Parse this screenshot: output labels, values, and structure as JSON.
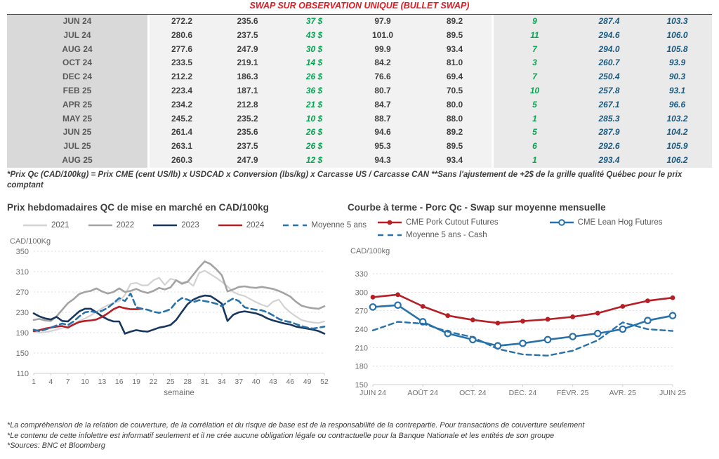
{
  "banner_title": "SWAP SUR OBSERVATION UNIQUE (BULLET SWAP)",
  "colors": {
    "banner_red": "#e01b22",
    "green_value": "#00a650",
    "blue_value": "#19597e",
    "month_col_bg": "#d9d9d9",
    "table_bg": "#f2f2f2",
    "series_2021": "#d2d2d2",
    "series_2022": "#a3a3a3",
    "series_2023": "#17375e",
    "series_2024": "#b42025",
    "series_blue": "#2871a9"
  },
  "table": {
    "rows": [
      [
        "JUN 24",
        "272.2",
        "235.6",
        "37 $",
        "97.9",
        "89.2",
        "9",
        "287.4",
        "103.3"
      ],
      [
        "JUL 24",
        "280.6",
        "237.5",
        "43 $",
        "101.0",
        "89.5",
        "11",
        "294.6",
        "106.0"
      ],
      [
        "AUG 24",
        "277.6",
        "247.9",
        "30 $",
        "99.9",
        "93.4",
        "7",
        "294.0",
        "105.8"
      ],
      [
        "OCT 24",
        "233.5",
        "219.1",
        "14 $",
        "84.2",
        "81.0",
        "3",
        "260.7",
        "93.9"
      ],
      [
        "DEC 24",
        "212.2",
        "186.3",
        "26 $",
        "76.6",
        "69.4",
        "7",
        "250.4",
        "90.3"
      ],
      [
        "FEB 25",
        "223.4",
        "187.1",
        "36 $",
        "80.7",
        "70.5",
        "10",
        "257.8",
        "93.1"
      ],
      [
        "APR 25",
        "234.2",
        "212.8",
        "21 $",
        "84.7",
        "80.0",
        "5",
        "267.1",
        "96.6"
      ],
      [
        "MAY 25",
        "245.2",
        "235.2",
        "10 $",
        "88.7",
        "88.0",
        "1",
        "285.3",
        "103.2"
      ],
      [
        "JUN 25",
        "261.4",
        "235.6",
        "26 $",
        "94.6",
        "89.2",
        "5",
        "287.9",
        "104.2"
      ],
      [
        "JUL 25",
        "263.1",
        "237.5",
        "26 $",
        "95.3",
        "89.5",
        "6",
        "292.6",
        "105.9"
      ],
      [
        "AUG 25",
        "260.3",
        "247.9",
        "12 $",
        "94.3",
        "93.4",
        "1",
        "293.4",
        "106.2"
      ]
    ],
    "footnote": "*Prix Qc (CAD/100kg) = Prix CME (cent US/lb) x USDCAD x Conversion (lbs/kg) x Carcasse US / Carcasse CAN **Sans l'ajustement de +2$ de la grille qualité Québec pour le prix comptant"
  },
  "chart_data": [
    {
      "type": "line",
      "title": "Prix hebdomadaires QC de mise en marché en CAD/100kg",
      "y_axis_label": "CAD/100Kg",
      "xlabel": "semaine",
      "ylim": [
        110,
        350
      ],
      "ytick_step": 40,
      "x_start": 1,
      "x_end": 52,
      "xticks": [
        1,
        4,
        7,
        10,
        13,
        16,
        19,
        22,
        25,
        28,
        31,
        34,
        37,
        40,
        43,
        46,
        49,
        52
      ],
      "grid": "horizontal-dashed",
      "legend_position": "top",
      "series": [
        {
          "name": "2021",
          "color": "#d2d2d2",
          "width": 2.2,
          "values": [
            192,
            190,
            191,
            193,
            196,
            199,
            203,
            207,
            213,
            218,
            224,
            231,
            238,
            244,
            248,
            252,
            264,
            286,
            288,
            283,
            283,
            293,
            298,
            284,
            296,
            293,
            288,
            291,
            282,
            307,
            312,
            305,
            298,
            290,
            281,
            270,
            265,
            262,
            256,
            250,
            245,
            241,
            251,
            255,
            240,
            230,
            222,
            215,
            212,
            210,
            209,
            212
          ]
        },
        {
          "name": "2022",
          "color": "#a3a3a3",
          "width": 2.6,
          "values": [
            215,
            217,
            214,
            213,
            222,
            235,
            248,
            256,
            266,
            270,
            272,
            277,
            271,
            267,
            270,
            277,
            270,
            272,
            276,
            271,
            268,
            272,
            278,
            275,
            279,
            293,
            286,
            290,
            304,
            318,
            330,
            325,
            315,
            303,
            271,
            275,
            280,
            281,
            279,
            278,
            280,
            278,
            276,
            272,
            267,
            261,
            251,
            243,
            240,
            238,
            237,
            242
          ]
        },
        {
          "name": "2023",
          "color": "#17375e",
          "width": 2.6,
          "values": [
            228,
            222,
            218,
            216,
            221,
            213,
            212,
            222,
            232,
            237,
            237,
            230,
            222,
            216,
            212,
            212,
            188,
            192,
            195,
            193,
            192,
            196,
            200,
            202,
            205,
            215,
            231,
            246,
            255,
            260,
            263,
            262,
            255,
            247,
            213,
            225,
            230,
            232,
            230,
            228,
            224,
            218,
            214,
            211,
            208,
            206,
            202,
            200,
            198,
            196,
            193,
            188
          ]
        },
        {
          "name": "2024",
          "color": "#b42025",
          "width": 2.6,
          "values": [
            193,
            195,
            198,
            200,
            202,
            203,
            200,
            206,
            211,
            213,
            214,
            216,
            221,
            228,
            236,
            241,
            238,
            236,
            236,
            237
          ]
        },
        {
          "name": "Moyenne 5 ans",
          "color": "#2871a9",
          "width": 2.6,
          "dash": "8 5",
          "values": [
            196,
            193,
            196,
            200,
            204,
            208,
            205,
            212,
            222,
            230,
            232,
            230,
            233,
            239,
            248,
            258,
            252,
            267,
            240,
            237,
            235,
            231,
            229,
            232,
            236,
            250,
            258,
            255,
            250,
            254,
            252,
            250,
            247,
            242,
            251,
            257,
            252,
            240,
            237,
            235,
            234,
            230,
            224,
            217,
            213,
            211,
            207,
            203,
            200,
            198,
            200,
            202
          ]
        }
      ]
    },
    {
      "type": "line",
      "title": "Courbe à terme - Porc Qc - Swap sur moyenne mensuelle",
      "y_axis_label": "CAD/100kg",
      "ylim": [
        150,
        330
      ],
      "ytick_step": 30,
      "n_points": 13,
      "xtick_labels": [
        "JUIN 24",
        "AOÛT 24",
        "OCT. 24",
        "DÉC. 24",
        "FÉVR. 25",
        "AVR. 25",
        "JUIN 25"
      ],
      "xtick_indices": [
        0,
        2,
        4,
        6,
        8,
        10,
        12
      ],
      "grid": "horizontal-dashed",
      "legend_position": "top",
      "series": [
        {
          "name": "CME Pork Cutout Futures",
          "color": "#b42025",
          "width": 2.6,
          "marker": "filled",
          "values": [
            292,
            296,
            277,
            262,
            255,
            250,
            253,
            256,
            260,
            266,
            277,
            286,
            291
          ]
        },
        {
          "name": "CME Lean Hog Futures",
          "color": "#2871a9",
          "width": 2.6,
          "marker": "open",
          "values": [
            276,
            279,
            252,
            233,
            223,
            213,
            217,
            223,
            228,
            233,
            240,
            254,
            262
          ]
        },
        {
          "name": "Moyenne 5 ans - Cash",
          "color": "#2871a9",
          "width": 2.4,
          "dash": "7 5",
          "values": [
            238,
            252,
            249,
            236,
            227,
            208,
            199,
            197,
            205,
            222,
            251,
            240,
            237
          ]
        }
      ]
    }
  ],
  "footer": {
    "lines": [
      "*La compréhension de la relation de couverture, de la corrélation et du risque de base est de la responsabilité de la contrepartie. Pour transactions de couverture seulement",
      "*Le contenu de cette infolettre est informatif seulement et il ne crée aucune obligation légale ou contractuelle pour la Banque Nationale et les entités de son groupe",
      "*Sources: BNC et Bloomberg"
    ]
  }
}
